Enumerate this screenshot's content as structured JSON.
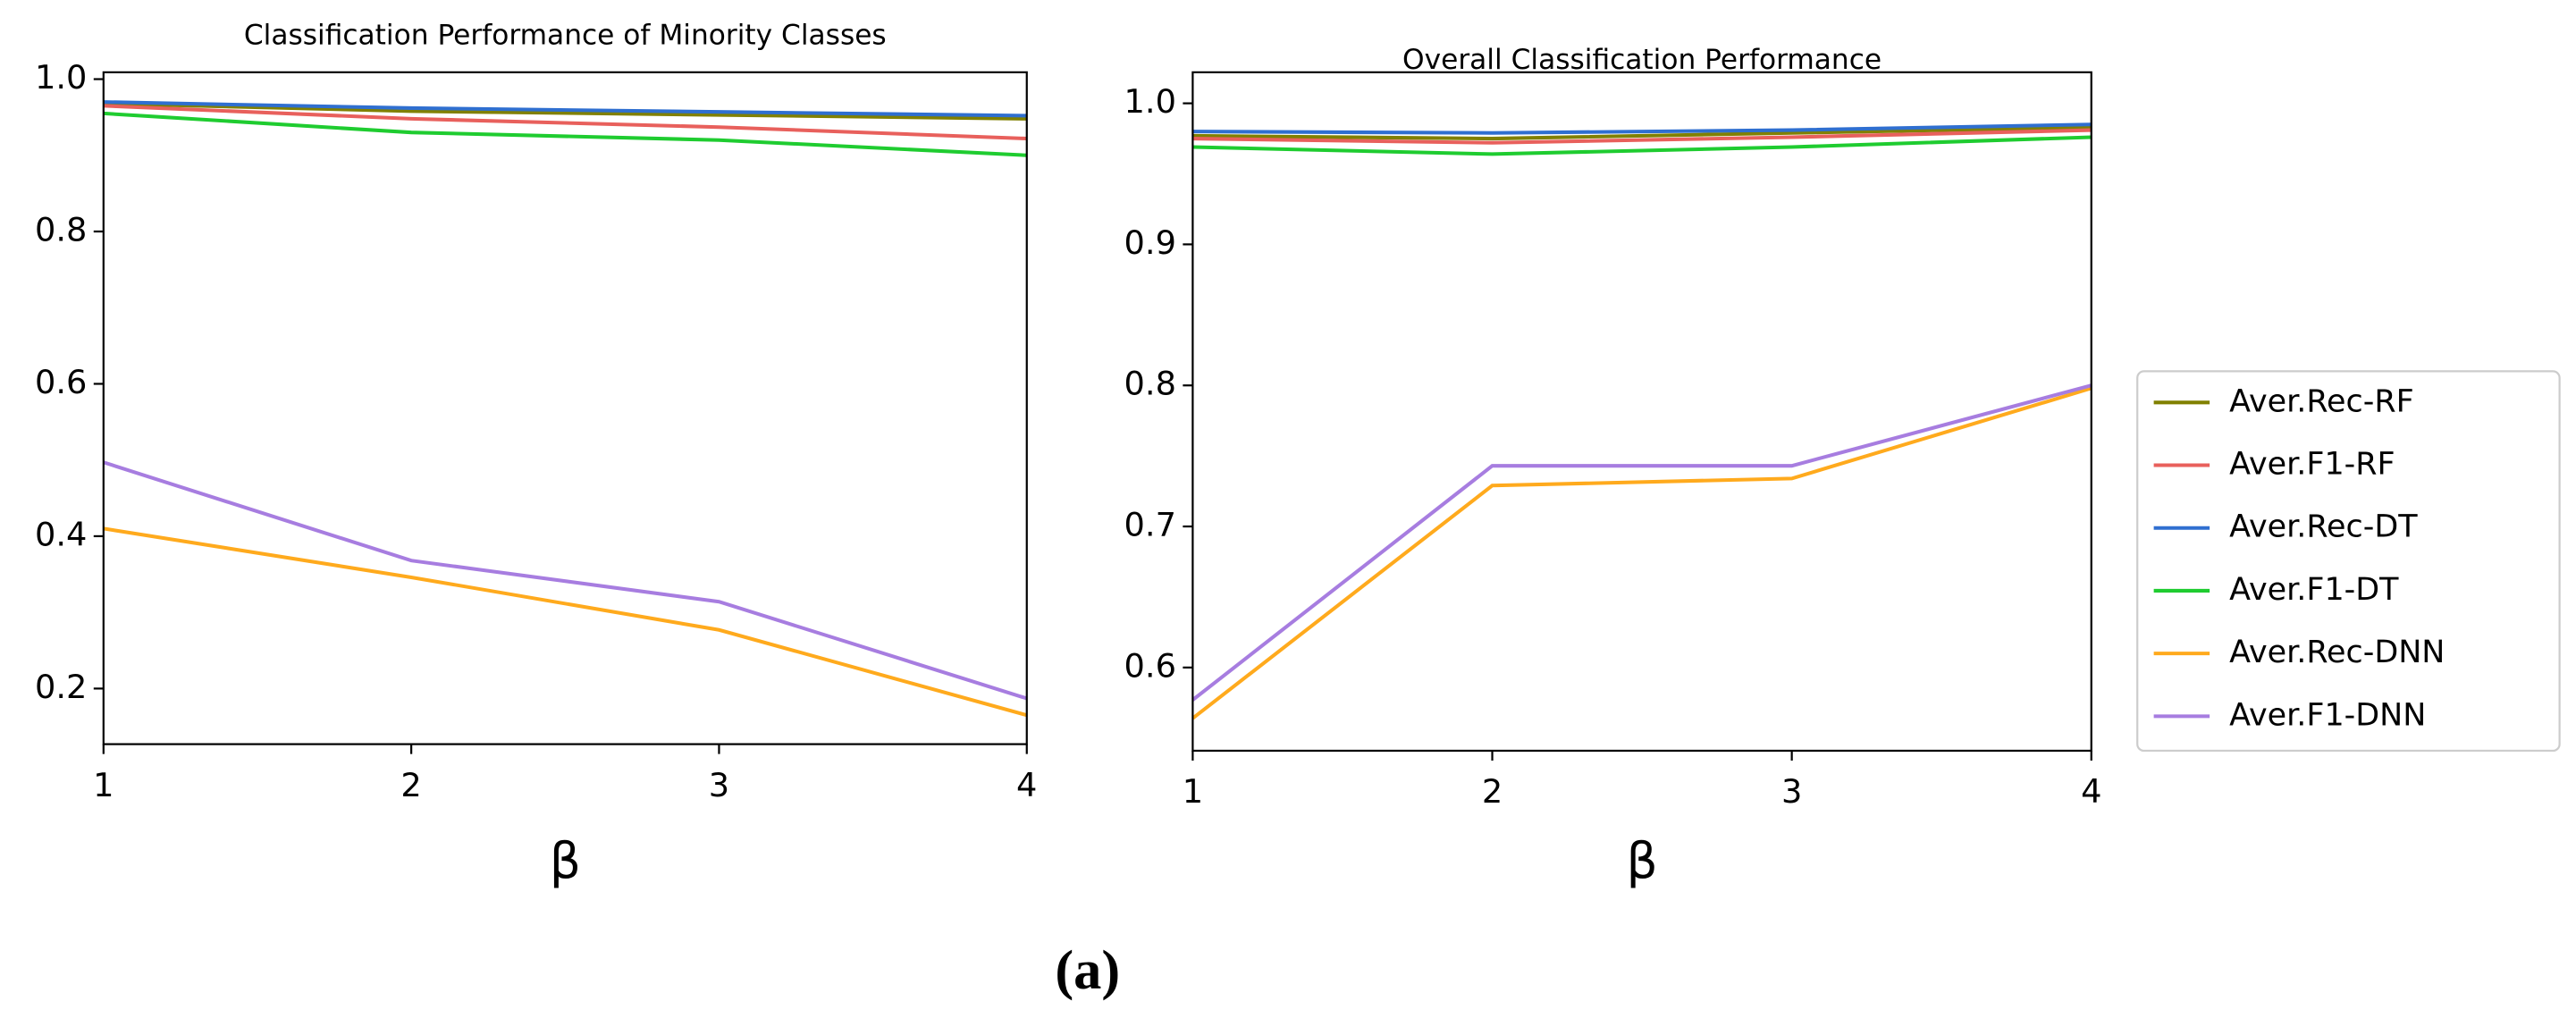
{
  "chart_data": [
    {
      "type": "line",
      "title": "Classification Performance of Minority Classes",
      "xlabel": "β",
      "x": [
        1,
        2,
        3,
        4
      ],
      "xlim": [
        1,
        4
      ],
      "xticks": [
        1,
        2,
        3,
        4
      ],
      "ylim": [
        0.127,
        1.009
      ],
      "yticks": [
        {
          "value": 0.2,
          "label": "0.2"
        },
        {
          "value": 0.4,
          "label": "0.4"
        },
        {
          "value": 0.6,
          "label": "0.6"
        },
        {
          "value": 0.8,
          "label": "0.8"
        },
        {
          "value": 1.0,
          "label": "1.0"
        }
      ],
      "series": [
        {
          "name": "Aver.Rec-RF",
          "color": "#808000",
          "values": [
            0.968,
            0.958,
            0.953,
            0.948
          ]
        },
        {
          "name": "Aver.F1-RF",
          "color": "#e8605c",
          "values": [
            0.965,
            0.948,
            0.937,
            0.922
          ]
        },
        {
          "name": "Aver.Rec-DT",
          "color": "#2f6fd0",
          "values": [
            0.97,
            0.962,
            0.957,
            0.952
          ]
        },
        {
          "name": "Aver.F1-DT",
          "color": "#1fcc30",
          "values": [
            0.955,
            0.93,
            0.92,
            0.9
          ]
        },
        {
          "name": "Aver.Rec-DNN",
          "color": "#ffaa1d",
          "values": [
            0.41,
            0.346,
            0.277,
            0.165
          ]
        },
        {
          "name": "Aver.F1-DNN",
          "color": "#a77de0",
          "values": [
            0.497,
            0.368,
            0.314,
            0.187
          ]
        }
      ]
    },
    {
      "type": "line",
      "title": "Overall Classification Performance",
      "xlabel": "β",
      "legend": "right",
      "x": [
        1,
        2,
        3,
        4
      ],
      "xlim": [
        1,
        4
      ],
      "xticks": [
        1,
        2,
        3,
        4
      ],
      "ylim": [
        0.541,
        1.022
      ],
      "yticks": [
        0.6,
        0.7,
        0.8,
        0.9,
        {
          "value": 1.0,
          "label": "1.0"
        }
      ],
      "series": [
        {
          "name": "Aver.Rec-RF",
          "color": "#808000",
          "values": [
            0.977,
            0.975,
            0.979,
            0.983
          ]
        },
        {
          "name": "Aver.F1-RF",
          "color": "#e8605c",
          "values": [
            0.975,
            0.972,
            0.976,
            0.981
          ]
        },
        {
          "name": "Aver.Rec-DT",
          "color": "#2f6fd0",
          "values": [
            0.98,
            0.979,
            0.981,
            0.985
          ]
        },
        {
          "name": "Aver.F1-DT",
          "color": "#1fcc30",
          "values": [
            0.969,
            0.964,
            0.969,
            0.976
          ]
        },
        {
          "name": "Aver.Rec-DNN",
          "color": "#ffaa1d",
          "values": [
            0.564,
            0.729,
            0.734,
            0.798
          ]
        },
        {
          "name": "Aver.F1-DNN",
          "color": "#a77de0",
          "values": [
            0.577,
            0.743,
            0.743,
            0.8
          ]
        }
      ]
    }
  ],
  "caption": "(a)"
}
